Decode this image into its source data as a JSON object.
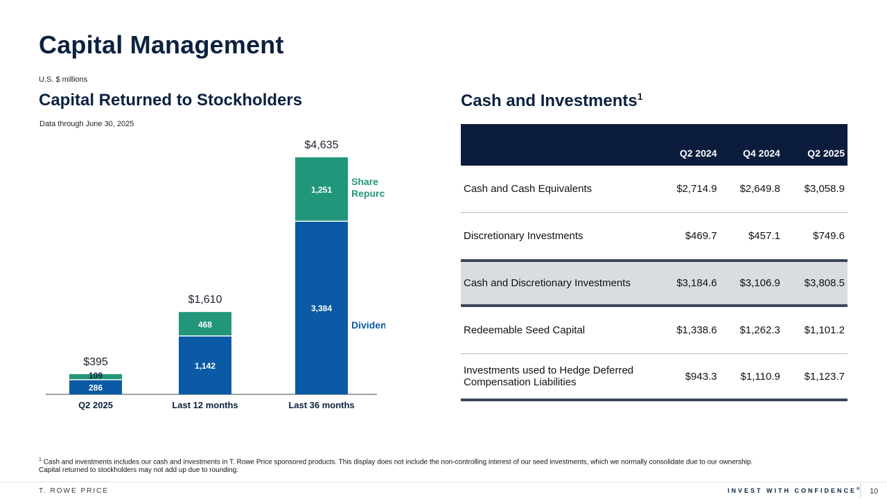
{
  "title": "Capital Management",
  "units": "U.S. $ millions",
  "left_section": {
    "heading": "Capital Returned to Stockholders",
    "subtitle": "Data through June 30, 2025"
  },
  "right_section": {
    "heading": "Cash and Investments",
    "heading_sup": "1"
  },
  "colors": {
    "dividends": "#0a5aa5",
    "repurchases": "#22967a",
    "navy": "#0c2140"
  },
  "chart_data": {
    "type": "bar",
    "stacked": true,
    "categories": [
      "Q2 2025",
      "Last 12 months",
      "Last 36 months"
    ],
    "series": [
      {
        "name": "Dividends",
        "values": [
          286,
          1142,
          3384
        ]
      },
      {
        "name": "Share Repurchases",
        "values": [
          109,
          468,
          1251
        ]
      }
    ],
    "totals": [
      "$395",
      "$1,610",
      "$4,635"
    ],
    "value_labels": {
      "dividends": [
        "286",
        "1,142",
        "3,384"
      ],
      "repurchases": [
        "109",
        "468",
        "1,251"
      ]
    },
    "legend_labels": {
      "repurchases": [
        "Share",
        "Repurchases"
      ],
      "dividends": "Dividends"
    },
    "ylim": [
      0,
      4635
    ]
  },
  "table": {
    "columns": [
      "",
      "Q2 2024",
      "Q4 2024",
      "Q2 2025"
    ],
    "rows": [
      {
        "label": "Cash and Cash Equivalents",
        "values": [
          "$2,714.9",
          "$2,649.8",
          "$3,058.9"
        ]
      },
      {
        "label": "Discretionary Investments",
        "values": [
          "$469.7",
          "$457.1",
          "$749.6"
        ]
      },
      {
        "label": "Cash and Discretionary Investments",
        "values": [
          "$3,184.6",
          "$3,106.9",
          "$3,808.5"
        ]
      },
      {
        "label": "Redeemable Seed Capital",
        "values": [
          "$1,338.6",
          "$1,262.3",
          "$1,101.2"
        ]
      },
      {
        "label_line1": "Investments used to Hedge Deferred",
        "label_line2": "Compensation Liabilities",
        "values": [
          "$943.3",
          "$1,110.9",
          "$1,123.7"
        ]
      }
    ]
  },
  "footnote": {
    "sup": "1",
    "line1": "Cash and investments includes our cash and investments in T. Rowe Price sponsored products. This display does not include the non-controlling interest of our seed investments, which we normally consolidate due to our ownership.",
    "line2": "Capital returned to stockholders may not add up due to rounding."
  },
  "footer": {
    "brand": "T. ROWE PRICE",
    "tagline": "INVEST WITH CONFIDENCE",
    "tagline_mark": "®",
    "page_number": "10"
  }
}
